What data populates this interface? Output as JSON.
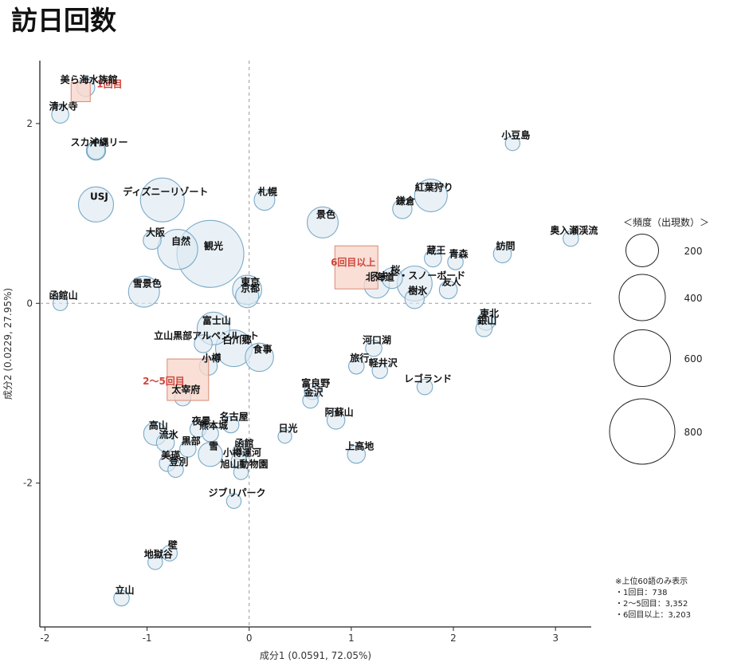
{
  "title": "訪日回数",
  "chart_data": {
    "type": "scatter",
    "title": "訪日回数",
    "xlabel": "成分1 (0.0591, 72.05%)",
    "ylabel": "成分2 (0.0229, 27.95%)",
    "xlim": [
      -2.05,
      3.35
    ],
    "ylim": [
      -3.6,
      2.7
    ],
    "xticks": [
      -2,
      -1,
      0,
      1,
      2,
      3
    ],
    "yticks": [
      -2,
      0,
      2
    ],
    "reference_lines": {
      "x": 0,
      "y": 0
    },
    "grid": false,
    "points": [
      {
        "label": "美ら海水族館",
        "x": -1.6,
        "y": 2.4,
        "freq": 60
      },
      {
        "label": "清水寺",
        "x": -1.85,
        "y": 2.1,
        "freq": 55
      },
      {
        "label": "スカイツリー",
        "x": -1.5,
        "y": 1.7,
        "freq": 70
      },
      {
        "label": "沖縄",
        "x": -1.5,
        "y": 1.7,
        "freq": 60
      },
      {
        "label": "ディズニーリゾート",
        "x": -0.85,
        "y": 1.15,
        "freq": 360
      },
      {
        "label": "USJ",
        "x": -1.5,
        "y": 1.1,
        "freq": 230
      },
      {
        "label": "札幌",
        "x": 0.15,
        "y": 1.15,
        "freq": 80
      },
      {
        "label": "景色",
        "x": 0.72,
        "y": 0.9,
        "freq": 180
      },
      {
        "label": "大阪",
        "x": -0.95,
        "y": 0.7,
        "freq": 60
      },
      {
        "label": "自然",
        "x": -0.7,
        "y": 0.6,
        "freq": 300
      },
      {
        "label": "観光",
        "x": -0.38,
        "y": 0.55,
        "freq": 840
      },
      {
        "label": "雪景色",
        "x": -1.03,
        "y": 0.13,
        "freq": 180
      },
      {
        "label": "東京",
        "x": -0.02,
        "y": 0.15,
        "freq": 160
      },
      {
        "label": "京都",
        "x": -0.02,
        "y": 0.08,
        "freq": 100
      },
      {
        "label": "函館山",
        "x": -1.85,
        "y": 0.0,
        "freq": 40
      },
      {
        "label": "富士山",
        "x": -0.35,
        "y": -0.28,
        "freq": 200
      },
      {
        "label": "立山黒部アルペンルート",
        "x": -0.45,
        "y": -0.45,
        "freq": 60
      },
      {
        "label": "白川郷",
        "x": -0.15,
        "y": -0.5,
        "freq": 250
      },
      {
        "label": "食事",
        "x": 0.1,
        "y": -0.6,
        "freq": 150
      },
      {
        "label": "小樽",
        "x": -0.4,
        "y": -0.7,
        "freq": 60
      },
      {
        "label": "太宰府",
        "x": -0.65,
        "y": -1.05,
        "freq": 50
      },
      {
        "label": "富良野",
        "x": 0.62,
        "y": -0.98,
        "freq": 50
      },
      {
        "label": "金沢",
        "x": 0.6,
        "y": -1.08,
        "freq": 45
      },
      {
        "label": "夜景",
        "x": -0.5,
        "y": -1.4,
        "freq": 50
      },
      {
        "label": "名古屋",
        "x": -0.18,
        "y": -1.35,
        "freq": 50
      },
      {
        "label": "熊本城",
        "x": -0.38,
        "y": -1.45,
        "freq": 50
      },
      {
        "label": "高山",
        "x": -0.92,
        "y": -1.45,
        "freq": 100
      },
      {
        "label": "流氷",
        "x": -0.82,
        "y": -1.55,
        "freq": 60
      },
      {
        "label": "黒部",
        "x": -0.6,
        "y": -1.62,
        "freq": 50
      },
      {
        "label": "美瑛",
        "x": -0.8,
        "y": -1.78,
        "freq": 50
      },
      {
        "label": "登別",
        "x": -0.72,
        "y": -1.85,
        "freq": 45
      },
      {
        "label": "雪",
        "x": -0.38,
        "y": -1.68,
        "freq": 110
      },
      {
        "label": "函館",
        "x": -0.08,
        "y": -1.65,
        "freq": 50
      },
      {
        "label": "小樽運河",
        "x": -0.1,
        "y": -1.75,
        "freq": 45
      },
      {
        "label": "旭山動物園",
        "x": -0.08,
        "y": -1.88,
        "freq": 40
      },
      {
        "label": "ジブリパーク",
        "x": -0.15,
        "y": -2.2,
        "freq": 40
      },
      {
        "label": "日光",
        "x": 0.35,
        "y": -1.48,
        "freq": 35
      },
      {
        "label": "阿蘇山",
        "x": 0.85,
        "y": -1.3,
        "freq": 60
      },
      {
        "label": "上高地",
        "x": 1.05,
        "y": -1.68,
        "freq": 60
      },
      {
        "label": "河口湖",
        "x": 1.22,
        "y": -0.5,
        "freq": 50
      },
      {
        "label": "旅行",
        "x": 1.05,
        "y": -0.7,
        "freq": 45
      },
      {
        "label": "軽井沢",
        "x": 1.28,
        "y": -0.75,
        "freq": 45
      },
      {
        "label": "レゴランド",
        "x": 1.72,
        "y": -0.93,
        "freq": 45
      },
      {
        "label": "小豆島",
        "x": 2.58,
        "y": 1.78,
        "freq": 40
      },
      {
        "label": "紅葉狩り",
        "x": 1.78,
        "y": 1.2,
        "freq": 200
      },
      {
        "label": "鎌倉",
        "x": 1.5,
        "y": 1.05,
        "freq": 70
      },
      {
        "label": "訪問",
        "x": 2.48,
        "y": 0.55,
        "freq": 60
      },
      {
        "label": "奥入瀬渓流",
        "x": 3.15,
        "y": 0.72,
        "freq": 45
      },
      {
        "label": "蔵王",
        "x": 1.8,
        "y": 0.5,
        "freq": 55
      },
      {
        "label": "青森",
        "x": 2.02,
        "y": 0.46,
        "freq": 45
      },
      {
        "label": "桜",
        "x": 1.4,
        "y": 0.28,
        "freq": 80
      },
      {
        "label": "スキー・スノーボード",
        "x": 1.62,
        "y": 0.22,
        "freq": 230
      },
      {
        "label": "北海道",
        "x": 1.25,
        "y": 0.2,
        "freq": 120
      },
      {
        "label": "樹氷",
        "x": 1.62,
        "y": 0.05,
        "freq": 70
      },
      {
        "label": "友人",
        "x": 1.95,
        "y": 0.15,
        "freq": 60
      },
      {
        "label": "東北",
        "x": 2.32,
        "y": -0.2,
        "freq": 60
      },
      {
        "label": "銀山",
        "x": 2.3,
        "y": -0.28,
        "freq": 50
      },
      {
        "label": "壁",
        "x": -0.78,
        "y": -2.78,
        "freq": 45
      },
      {
        "label": "地獄谷",
        "x": -0.92,
        "y": -2.88,
        "freq": 40
      },
      {
        "label": "立山",
        "x": -1.25,
        "y": -3.28,
        "freq": 45
      }
    ],
    "categories": [
      {
        "label": "1回目",
        "x": -1.65,
        "y": 2.35
      },
      {
        "label": "2～5回目",
        "x": -0.6,
        "y": -0.85
      },
      {
        "label": "6回目以上",
        "x": 1.05,
        "y": 0.4
      }
    ],
    "legend": {
      "title": "＜頻度（出現数）＞",
      "position": "right",
      "sizes": [
        200,
        400,
        600,
        800
      ]
    },
    "notes": [
      "※上位60語のみ表示",
      "・1回目：738",
      "・2～5回目：3,352",
      "・6回目以上：3,203"
    ],
    "colors": {
      "bubble_fill": "#dde9f1",
      "bubble_stroke": "#7aaac8",
      "category_fill": "#f7d7cc",
      "category_stroke": "#d98a72",
      "category_text": "#d0463c"
    }
  }
}
